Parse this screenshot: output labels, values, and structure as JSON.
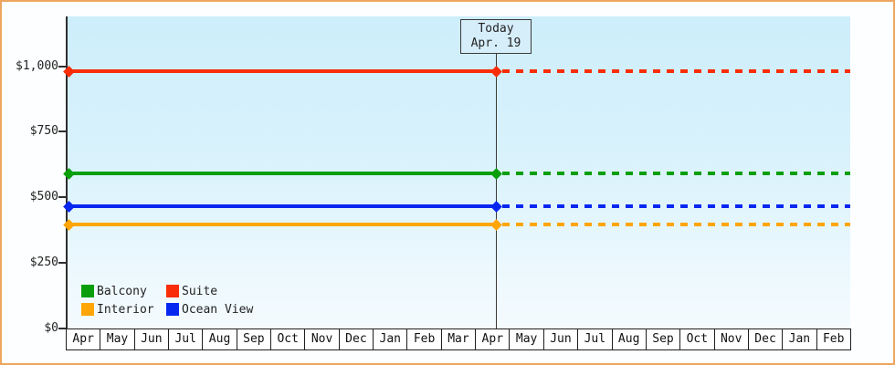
{
  "chart_data": {
    "type": "line",
    "description": "Cruise cabin price history by category, flat lines with solid history before today and dashed projection after today",
    "x_axis": {
      "months": [
        "Apr",
        "May",
        "Jun",
        "Jul",
        "Aug",
        "Sep",
        "Oct",
        "Nov",
        "Dec",
        "Jan",
        "Feb",
        "Mar",
        "Apr",
        "May",
        "Jun",
        "Jul",
        "Aug",
        "Sep",
        "Oct",
        "Nov",
        "Dec",
        "Jan",
        "Feb"
      ]
    },
    "y_axis": {
      "ticks": [
        {
          "label": "$1,000",
          "value": 1000
        },
        {
          "label": "$750",
          "value": 750
        },
        {
          "label": "$500",
          "value": 500
        },
        {
          "label": "$250",
          "value": 250
        },
        {
          "label": "$0",
          "value": 0
        }
      ],
      "ylim": [
        0,
        1190
      ]
    },
    "series": [
      {
        "name": "Suite",
        "value": 980,
        "color": "#f92d07"
      },
      {
        "name": "Balcony",
        "value": 590,
        "color": "#0a9f0a"
      },
      {
        "name": "Ocean View",
        "value": 465,
        "color": "#0727f0"
      },
      {
        "name": "Interior",
        "value": 395,
        "color": "#ffa505"
      }
    ],
    "legend": {
      "items": [
        {
          "label": "Balcony",
          "color": "#0a9f0a"
        },
        {
          "label": "Suite",
          "color": "#f92d07"
        },
        {
          "label": "Interior",
          "color": "#ffa505"
        },
        {
          "label": "Ocean View",
          "color": "#0727f0"
        }
      ]
    },
    "today": {
      "title": "Today",
      "date": "Apr. 19",
      "month_index": 12,
      "month_fraction": 0.61
    },
    "colors": {
      "frame_border": "#eda65f",
      "plot_bg_top": "#cdeefb",
      "plot_bg_bottom": "#f4fbfe",
      "axis": "#2e2e2e"
    }
  }
}
